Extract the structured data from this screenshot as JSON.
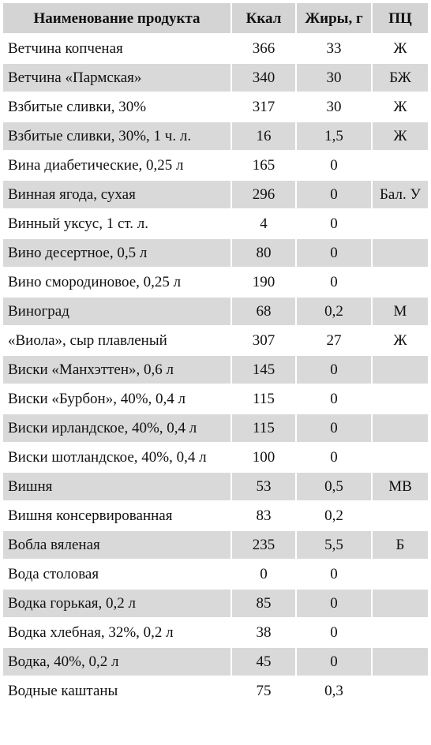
{
  "table": {
    "headers": [
      "Наименование продукта",
      "Ккал",
      "Жиры, г",
      "ПЦ"
    ],
    "rows": [
      [
        "Ветчина копченая",
        "366",
        "33",
        "Ж"
      ],
      [
        "Ветчина «Пармская»",
        "340",
        "30",
        "БЖ"
      ],
      [
        "Взбитые сливки, 30%",
        "317",
        "30",
        "Ж"
      ],
      [
        "Взбитые сливки, 30%, 1 ч. л.",
        "16",
        "1,5",
        "Ж"
      ],
      [
        "Вина диабетические, 0,25 л",
        "165",
        "0",
        ""
      ],
      [
        "Винная ягода, сухая",
        "296",
        "0",
        "Бал. У"
      ],
      [
        "Винный уксус, 1 ст. л.",
        "4",
        "0",
        ""
      ],
      [
        "Вино десертное, 0,5 л",
        "80",
        "0",
        ""
      ],
      [
        "Вино смородиновое, 0,25 л",
        "190",
        "0",
        ""
      ],
      [
        "Виноград",
        "68",
        "0,2",
        "М"
      ],
      [
        "«Виола», сыр плавленый",
        "307",
        "27",
        "Ж"
      ],
      [
        "Виски «Манхэттен», 0,6 л",
        "145",
        "0",
        ""
      ],
      [
        "Виски «Бурбон», 40%, 0,4 л",
        "115",
        "0",
        ""
      ],
      [
        "Виски ирландское, 40%, 0,4 л",
        "115",
        "0",
        ""
      ],
      [
        "Виски шотландское, 40%, 0,4 л",
        "100",
        "0",
        ""
      ],
      [
        "Вишня",
        "53",
        "0,5",
        "МВ"
      ],
      [
        "Вишня консервированная",
        "83",
        "0,2",
        ""
      ],
      [
        "Вобла вяленая",
        "235",
        "5,5",
        "Б"
      ],
      [
        "Вода столовая",
        "0",
        "0",
        ""
      ],
      [
        "Водка горькая, 0,2 л",
        "85",
        "0",
        ""
      ],
      [
        "Водка хлебная, 32%, 0,2 л",
        "38",
        "0",
        ""
      ],
      [
        "Водка, 40%, 0,2 л",
        "45",
        "0",
        ""
      ],
      [
        "Водные каштаны",
        "75",
        "0,3",
        ""
      ]
    ]
  }
}
